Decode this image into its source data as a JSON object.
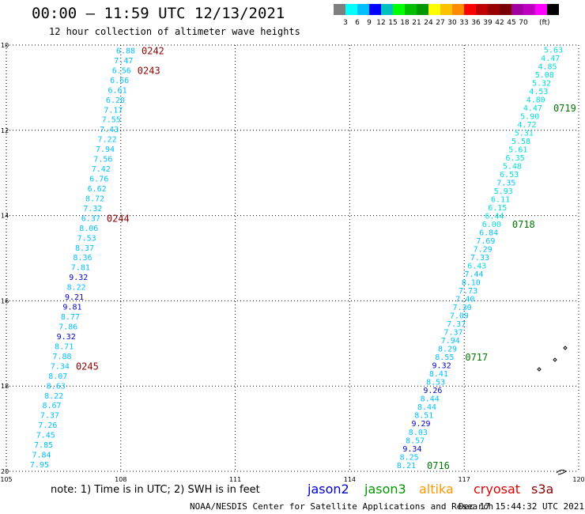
{
  "header": {
    "title": "00:00 – 11:59 UTC 12/13/2021",
    "subtitle": "12 hour collection of altimeter wave heights"
  },
  "colorbar": {
    "colors": [
      "#7f7f7f",
      "#00ffff",
      "#00bfff",
      "#0000ff",
      "#00bfbf",
      "#00ff00",
      "#00c000",
      "#009600",
      "#ffff00",
      "#ffc000",
      "#ff8c00",
      "#ff0000",
      "#c00000",
      "#960000",
      "#780000",
      "#a000a0",
      "#c000c0",
      "#ff00ff",
      "#000000"
    ],
    "labels": [
      "3",
      "6",
      "9",
      "12",
      "15",
      "18",
      "21",
      "24",
      "27",
      "30",
      "33",
      "36",
      "39",
      "42",
      "45",
      "70"
    ],
    "unit": "(ft)"
  },
  "map": {
    "lon_range": [
      105,
      120
    ],
    "lat_range": [
      10,
      20
    ],
    "lon_ticks": [
      "105",
      "108",
      "111",
      "114",
      "117",
      "120"
    ],
    "lat_ticks": [
      "10",
      "12",
      "14",
      "16",
      "18",
      "20"
    ],
    "grid": "dotted"
  },
  "track_west": [
    {
      "v": "6.88",
      "c": "#00bfff"
    },
    {
      "v": "7.47",
      "c": "#00bfff"
    },
    {
      "v": "6.56",
      "c": "#00bfff"
    },
    {
      "v": "6.66",
      "c": "#00bfff"
    },
    {
      "v": "6.61",
      "c": "#00bfff"
    },
    {
      "v": "6.20",
      "c": "#00bfff"
    },
    {
      "v": "7.17",
      "c": "#00bfff"
    },
    {
      "v": "7.55",
      "c": "#00bfff"
    },
    {
      "v": "7.43",
      "c": "#00bfff"
    },
    {
      "v": "7.22",
      "c": "#00bfff"
    },
    {
      "v": "7.94",
      "c": "#00bfff"
    },
    {
      "v": "7.56",
      "c": "#00bfff"
    },
    {
      "v": "7.42",
      "c": "#00bfff"
    },
    {
      "v": "6.76",
      "c": "#00bfff"
    },
    {
      "v": "6.62",
      "c": "#00bfff"
    },
    {
      "v": "8.72",
      "c": "#00bfff"
    },
    {
      "v": "7.32",
      "c": "#00bfff"
    },
    {
      "v": "6.37",
      "c": "#00bfff"
    },
    {
      "v": "8.06",
      "c": "#00bfff"
    },
    {
      "v": "7.53",
      "c": "#00bfff"
    },
    {
      "v": "8.37",
      "c": "#00bfff"
    },
    {
      "v": "8.36",
      "c": "#00bfff"
    },
    {
      "v": "7.81",
      "c": "#00bfff"
    },
    {
      "v": "9.32",
      "c": "#0000c8"
    },
    {
      "v": "8.22",
      "c": "#00bfff"
    },
    {
      "v": "9.21",
      "c": "#0000c8"
    },
    {
      "v": "9.81",
      "c": "#0000c8"
    },
    {
      "v": "8.77",
      "c": "#00bfff"
    },
    {
      "v": "7.86",
      "c": "#00bfff"
    },
    {
      "v": "9.32",
      "c": "#0000c8"
    },
    {
      "v": "8.71",
      "c": "#00bfff"
    },
    {
      "v": "7.88",
      "c": "#00bfff"
    },
    {
      "v": "7.34",
      "c": "#00bfff"
    },
    {
      "v": "8.07",
      "c": "#00bfff"
    },
    {
      "v": "8.63",
      "c": "#00bfff"
    },
    {
      "v": "8.22",
      "c": "#00bfff"
    },
    {
      "v": "8.67",
      "c": "#00bfff"
    },
    {
      "v": "7.37",
      "c": "#00bfff"
    },
    {
      "v": "7.26",
      "c": "#00bfff"
    },
    {
      "v": "7.45",
      "c": "#00bfff"
    },
    {
      "v": "7.85",
      "c": "#00bfff"
    },
    {
      "v": "7.84",
      "c": "#00bfff"
    },
    {
      "v": "7.95",
      "c": "#00bfff"
    }
  ],
  "track_west_times": [
    {
      "t": "0242",
      "row": 0
    },
    {
      "t": "0243",
      "row": 2
    },
    {
      "t": "0244",
      "row": 17
    },
    {
      "t": "0245",
      "row": 32
    }
  ],
  "track_east": [
    {
      "v": "5.63",
      "c": "#00dcdc"
    },
    {
      "v": "4.47",
      "c": "#00dcdc"
    },
    {
      "v": "4.85",
      "c": "#00dcdc"
    },
    {
      "v": "5.08",
      "c": "#00dcdc"
    },
    {
      "v": "5.32",
      "c": "#00dcdc"
    },
    {
      "v": "4.53",
      "c": "#00dcdc"
    },
    {
      "v": "4.80",
      "c": "#00dcdc"
    },
    {
      "v": "4.47",
      "c": "#00dcdc"
    },
    {
      "v": "5.90",
      "c": "#00dcdc"
    },
    {
      "v": "4.72",
      "c": "#00dcdc"
    },
    {
      "v": "5.31",
      "c": "#00dcdc"
    },
    {
      "v": "5.58",
      "c": "#00dcdc"
    },
    {
      "v": "5.61",
      "c": "#00dcdc"
    },
    {
      "v": "6.35",
      "c": "#00dcdc"
    },
    {
      "v": "5.48",
      "c": "#00dcdc"
    },
    {
      "v": "6.53",
      "c": "#00dcdc"
    },
    {
      "v": "7.35",
      "c": "#00bfff"
    },
    {
      "v": "5.93",
      "c": "#00dcdc"
    },
    {
      "v": "6.11",
      "c": "#00dcdc"
    },
    {
      "v": "6.15",
      "c": "#00dcdc"
    },
    {
      "v": "6.44",
      "c": "#00dcdc"
    },
    {
      "v": "6.00",
      "c": "#00dcdc"
    },
    {
      "v": "6.84",
      "c": "#00bfff"
    },
    {
      "v": "7.69",
      "c": "#00bfff"
    },
    {
      "v": "7.29",
      "c": "#00bfff"
    },
    {
      "v": "7.33",
      "c": "#00bfff"
    },
    {
      "v": "6.43",
      "c": "#00dcdc"
    },
    {
      "v": "7.44",
      "c": "#00bfff"
    },
    {
      "v": "8.10",
      "c": "#00bfff"
    },
    {
      "v": "7.73",
      "c": "#00bfff"
    },
    {
      "v": "7.40",
      "c": "#00bfff"
    },
    {
      "v": "7.30",
      "c": "#00bfff"
    },
    {
      "v": "7.09",
      "c": "#00bfff"
    },
    {
      "v": "7.37",
      "c": "#00bfff"
    },
    {
      "v": "7.37",
      "c": "#00bfff"
    },
    {
      "v": "7.94",
      "c": "#00bfff"
    },
    {
      "v": "8.29",
      "c": "#00bfff"
    },
    {
      "v": "8.55",
      "c": "#00bfff"
    },
    {
      "v": "9.32",
      "c": "#0000c8"
    },
    {
      "v": "8.41",
      "c": "#00bfff"
    },
    {
      "v": "8.53",
      "c": "#00bfff"
    },
    {
      "v": "9.26",
      "c": "#0000c8"
    },
    {
      "v": "8.44",
      "c": "#00bfff"
    },
    {
      "v": "8.44",
      "c": "#00bfff"
    },
    {
      "v": "8.51",
      "c": "#00bfff"
    },
    {
      "v": "9.29",
      "c": "#0000c8"
    },
    {
      "v": "8.03",
      "c": "#00bfff"
    },
    {
      "v": "8.57",
      "c": "#00bfff"
    },
    {
      "v": "9.34",
      "c": "#0000c8"
    },
    {
      "v": "8.25",
      "c": "#00bfff"
    },
    {
      "v": "8.21",
      "c": "#00bfff"
    }
  ],
  "track_east_times": [
    {
      "t": "0719",
      "row": 7
    },
    {
      "t": "0718",
      "row": 21
    },
    {
      "t": "0717",
      "row": 37
    },
    {
      "t": "0716",
      "row": 50
    }
  ],
  "colors": {
    "west_time": "#8b0000",
    "east_time": "#007800",
    "grid": "#000000"
  },
  "legend": {
    "note": "note: 1) Time is in UTC; 2) SWH is in feet",
    "sats": [
      {
        "name": "jason2",
        "color": "#0000cc"
      },
      {
        "name": "jason3",
        "color": "#009600"
      },
      {
        "name": "altika",
        "color": "#ff9600"
      },
      {
        "name": "cryosat",
        "color": "#e00000"
      },
      {
        "name": "s3a",
        "color": "#8b0000"
      }
    ]
  },
  "footer": {
    "credit": "NOAA/NESDIS Center for Satellite Applications and Research",
    "timestamp": "Dec 17 15:44:32 UTC 2021"
  }
}
